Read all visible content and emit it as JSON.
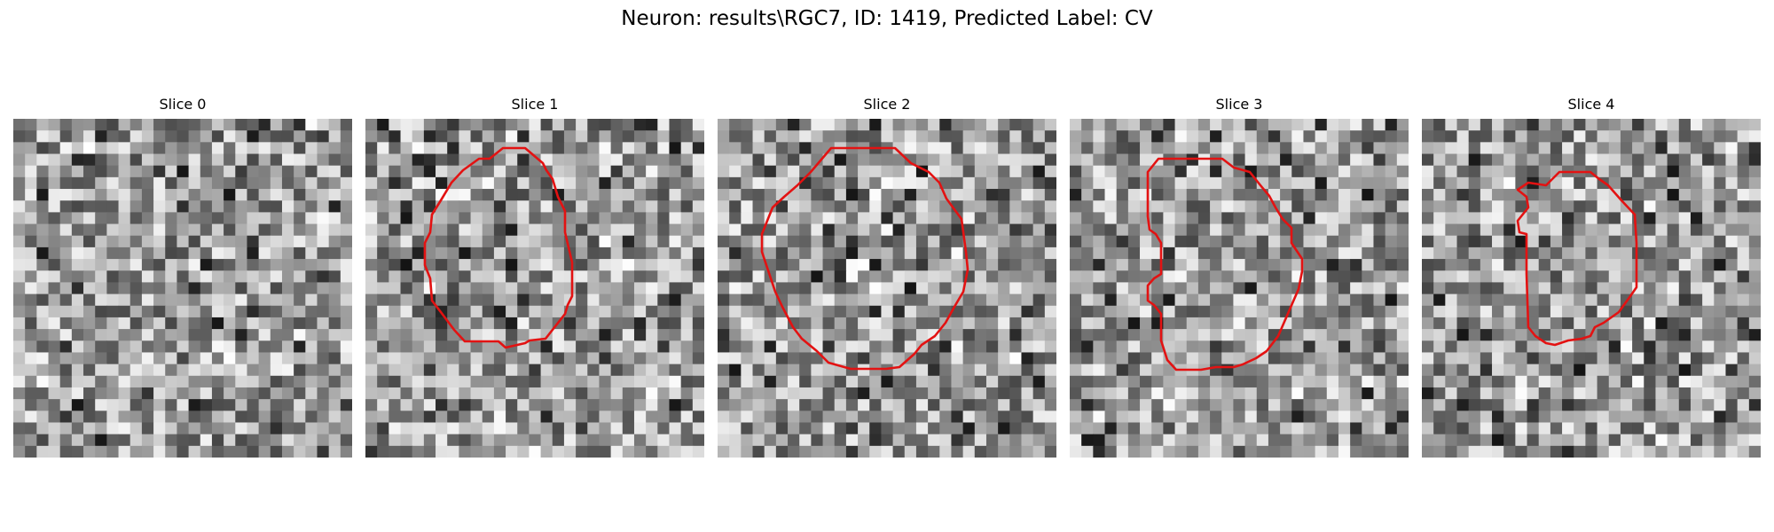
{
  "figure": {
    "title": "Neuron: results\\RGC7, ID: 1419, Predicted Label: CV"
  },
  "overlay_color": "#e31212",
  "colormap": "gray",
  "slices": [
    {
      "label": "Slice 0",
      "has_contour": false
    },
    {
      "label": "Slice 1",
      "has_contour": true
    },
    {
      "label": "Slice 2",
      "has_contour": true
    },
    {
      "label": "Slice 3",
      "has_contour": true
    },
    {
      "label": "Slice 4",
      "has_contour": true
    }
  ]
}
